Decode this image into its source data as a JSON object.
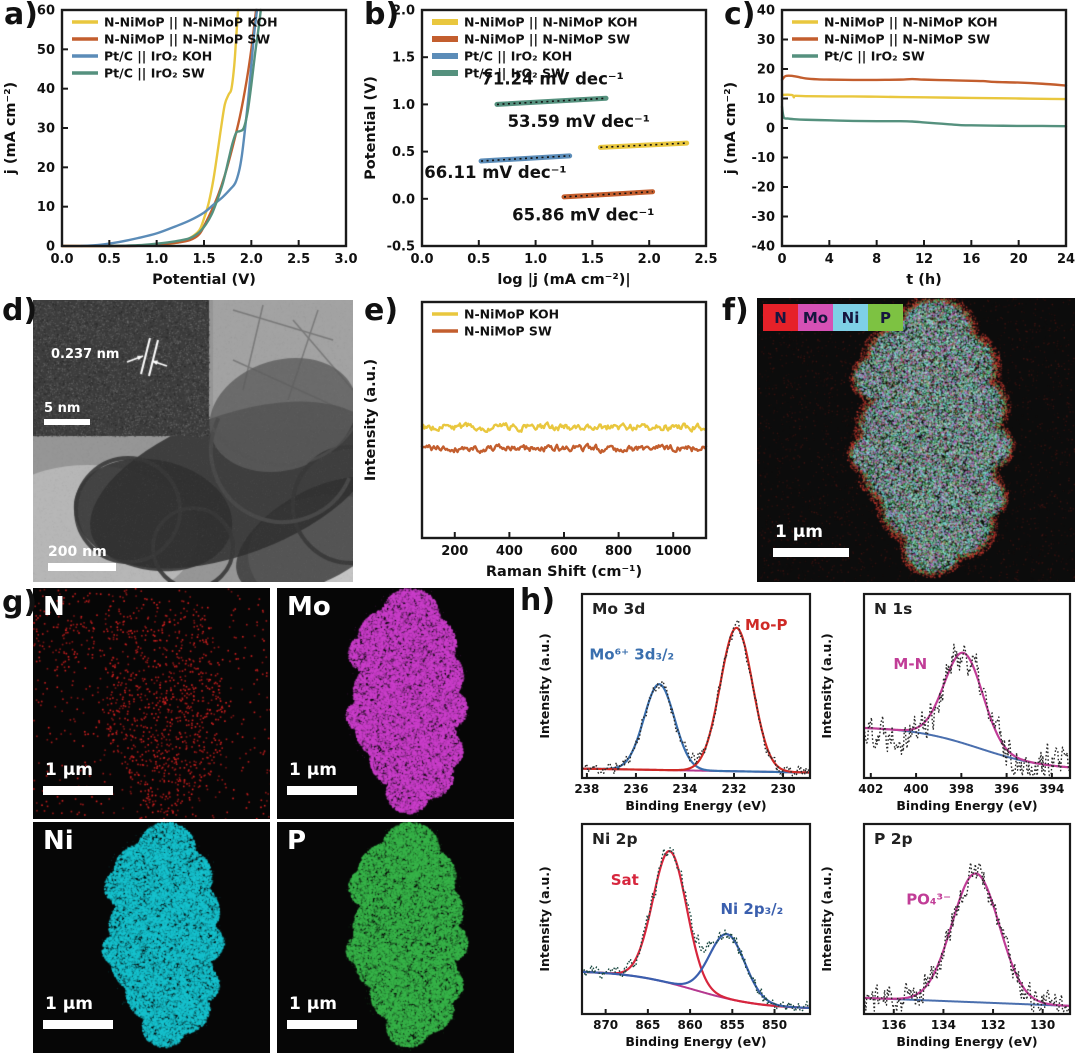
{
  "panels": {
    "a": {
      "letter": "a)"
    },
    "b": {
      "letter": "b)"
    },
    "c": {
      "letter": "c)"
    },
    "d": {
      "letter": "d)",
      "inset_annotation": "0.237 nm",
      "inset_scalebar": "5 nm",
      "scalebar": "200 nm"
    },
    "e": {
      "letter": "e)"
    },
    "f": {
      "letter": "f)",
      "scalebar": "1 μm",
      "legend": [
        {
          "label": "N",
          "color": "#e62129"
        },
        {
          "label": "Mo",
          "color": "#d551b5"
        },
        {
          "label": "Ni",
          "color": "#7ed0e6"
        },
        {
          "label": "P",
          "color": "#7dc242"
        }
      ],
      "map_layers": {
        "green": "#4fae5f",
        "cyan": "#74d4de",
        "magenta": "#c75fd0",
        "light": "#dff0dc",
        "red": "#cf3b30"
      }
    },
    "g": {
      "letter": "g)",
      "maps": [
        {
          "label": "N",
          "color": "#e02222",
          "mode": "sparse",
          "scalebar": "1 μm"
        },
        {
          "label": "Mo",
          "color": "#cb3ecb",
          "mode": "dense",
          "scalebar": "1 μm"
        },
        {
          "label": "Ni",
          "color": "#17c3cf",
          "mode": "dense",
          "scalebar": "1 μm"
        },
        {
          "label": "P",
          "color": "#38b54a",
          "mode": "dense",
          "scalebar": "1 μm"
        }
      ]
    },
    "h": {
      "letter": "h)"
    }
  },
  "chart_data": {
    "a": {
      "type": "line",
      "xlabel": "Potential (V)",
      "ylabel": "j (mA cm⁻²)",
      "xlim": [
        0,
        3.0
      ],
      "ylim": [
        0,
        60
      ],
      "xticks": [
        "0.0",
        "0.5",
        "1.0",
        "1.5",
        "2.0",
        "2.5",
        "3.0"
      ],
      "yticks": [
        "0",
        "10",
        "20",
        "30",
        "40",
        "50",
        "60"
      ],
      "legend": [
        {
          "label": "N-NiMoP || N-NiMoP KOH",
          "color": "#e9c73e"
        },
        {
          "label": "N-NiMoP || N-NiMoP SW",
          "color": "#c35e2e"
        },
        {
          "label": "Pt/C || IrO₂ KOH",
          "color": "#5b8cb8"
        },
        {
          "label": "Pt/C || IrO₂ SW",
          "color": "#55917e"
        }
      ],
      "series": [
        {
          "name": "N-NiMoP || N-NiMoP KOH",
          "color": "#e9c73e",
          "points": [
            [
              0,
              0
            ],
            [
              0.6,
              0
            ],
            [
              0.9,
              0.2
            ],
            [
              1.1,
              0.5
            ],
            [
              1.25,
              1
            ],
            [
              1.35,
              2
            ],
            [
              1.45,
              4
            ],
            [
              1.5,
              7
            ],
            [
              1.55,
              11
            ],
            [
              1.6,
              17
            ],
            [
              1.65,
              25
            ],
            [
              1.68,
              30
            ],
            [
              1.72,
              36
            ],
            [
              1.76,
              38.5
            ],
            [
              1.79,
              40
            ],
            [
              1.82,
              46
            ],
            [
              1.84,
              53
            ],
            [
              1.86,
              60
            ]
          ]
        },
        {
          "name": "N-NiMoP || N-NiMoP SW",
          "color": "#c35e2e",
          "points": [
            [
              0,
              0
            ],
            [
              0.7,
              0
            ],
            [
              1.0,
              0.3
            ],
            [
              1.2,
              0.8
            ],
            [
              1.35,
              1.5
            ],
            [
              1.45,
              3
            ],
            [
              1.52,
              6
            ],
            [
              1.58,
              9
            ],
            [
              1.65,
              13
            ],
            [
              1.72,
              18
            ],
            [
              1.8,
              25
            ],
            [
              1.88,
              33
            ],
            [
              1.95,
              42
            ],
            [
              2.0,
              50
            ],
            [
              2.05,
              60
            ]
          ]
        },
        {
          "name": "Pt/C || IrO₂ KOH",
          "color": "#5b8cb8",
          "points": [
            [
              0.2,
              0
            ],
            [
              0.4,
              0.3
            ],
            [
              0.6,
              1
            ],
            [
              0.8,
              2
            ],
            [
              1.0,
              3.2
            ],
            [
              1.2,
              5
            ],
            [
              1.35,
              6.5
            ],
            [
              1.5,
              8.5
            ],
            [
              1.6,
              10.5
            ],
            [
              1.7,
              12.5
            ],
            [
              1.78,
              14.5
            ],
            [
              1.83,
              16
            ],
            [
              1.87,
              19
            ],
            [
              1.9,
              23
            ],
            [
              1.93,
              29
            ],
            [
              1.97,
              38
            ],
            [
              2.0,
              46
            ],
            [
              2.03,
              54
            ],
            [
              2.06,
              60
            ]
          ]
        },
        {
          "name": "Pt/C || IrO₂ SW",
          "color": "#55917e",
          "points": [
            [
              0.5,
              0
            ],
            [
              0.8,
              0.2
            ],
            [
              1.0,
              0.6
            ],
            [
              1.2,
              1.2
            ],
            [
              1.35,
              2
            ],
            [
              1.45,
              3.5
            ],
            [
              1.52,
              5.5
            ],
            [
              1.58,
              8
            ],
            [
              1.63,
              11
            ],
            [
              1.7,
              16
            ],
            [
              1.76,
              22
            ],
            [
              1.8,
              26
            ],
            [
              1.84,
              28.8
            ],
            [
              1.88,
              29.2
            ],
            [
              1.92,
              30
            ],
            [
              1.96,
              34
            ],
            [
              2.0,
              41
            ],
            [
              2.04,
              49
            ],
            [
              2.08,
              56
            ],
            [
              2.1,
              60
            ]
          ]
        }
      ]
    },
    "b": {
      "type": "line",
      "xlabel": "log |j (mA cm⁻²)|",
      "ylabel": "Potential (V)",
      "xlim": [
        0,
        2.5
      ],
      "ylim": [
        -0.5,
        2.0
      ],
      "xticks": [
        "0.0",
        "0.5",
        "1.0",
        "1.5",
        "2.0",
        "2.5"
      ],
      "yticks": [
        "-0.5",
        "0.0",
        "0.5",
        "1.0",
        "1.5",
        "2.0"
      ],
      "dotted_fit": true,
      "legendSw": 6,
      "legend": [
        {
          "label": "N-NiMoP || N-NiMoP KOH",
          "color": "#e9c73e"
        },
        {
          "label": "N-NiMoP || N-NiMoP SW",
          "color": "#c35e2e"
        },
        {
          "label": "Pt/C || IrO₂ KOH",
          "color": "#5b8cb8"
        },
        {
          "label": "Pt/C || IrO₂ SW",
          "color": "#55917e"
        }
      ],
      "series": [
        {
          "name": "Pt/C || IrO₂ SW",
          "color": "#55917e",
          "w": 5,
          "smooth": false,
          "points": [
            [
              0.66,
              1.0
            ],
            [
              1.62,
              1.065
            ]
          ]
        },
        {
          "name": "N-NiMoP || N-NiMoP KOH",
          "color": "#e9c73e",
          "w": 5,
          "smooth": false,
          "points": [
            [
              1.57,
              0.545
            ],
            [
              2.33,
              0.59
            ]
          ]
        },
        {
          "name": "Pt/C || IrO₂ KOH",
          "color": "#5b8cb8",
          "w": 5,
          "smooth": false,
          "points": [
            [
              0.52,
              0.4
            ],
            [
              1.3,
              0.455
            ]
          ]
        },
        {
          "name": "N-NiMoP || N-NiMoP SW",
          "color": "#c35e2e",
          "w": 5,
          "smooth": false,
          "points": [
            [
              1.25,
              0.02
            ],
            [
              2.03,
              0.075
            ]
          ]
        }
      ],
      "annotations": [
        {
          "text": "71.24 mV dec⁻¹",
          "x": 1.15,
          "y": 1.21,
          "anchor": "middle"
        },
        {
          "text": "53.59 mV dec⁻¹",
          "x": 1.38,
          "y": 0.76,
          "anchor": "middle"
        },
        {
          "text": "66.11 mV dec⁻¹",
          "x": 0.02,
          "y": 0.22,
          "anchor": "start"
        },
        {
          "text": "65.86 mV dec⁻¹",
          "x": 1.42,
          "y": -0.23,
          "anchor": "middle"
        }
      ]
    },
    "c": {
      "type": "line",
      "xlabel": "t (h)",
      "ylabel": "j (mA cm⁻²)",
      "xlim": [
        0,
        24
      ],
      "ylim": [
        -40,
        40
      ],
      "xticks": [
        "0",
        "4",
        "8",
        "12",
        "16",
        "20",
        "24"
      ],
      "yticks": [
        "-40",
        "-30",
        "-20",
        "-10",
        "0",
        "10",
        "20",
        "30",
        "40"
      ],
      "legend": [
        {
          "label": "N-NiMoP || N-NiMoP KOH",
          "color": "#e9c73e"
        },
        {
          "label": "N-NiMoP || N-NiMoP SW",
          "color": "#c35e2e"
        },
        {
          "label": "Pt/C || IrO₂ SW",
          "color": "#55917e"
        }
      ],
      "series": [
        {
          "name": "N-NiMoP || N-NiMoP KOH",
          "color": "#e9c73e",
          "points": [
            [
              0,
              11.2
            ],
            [
              0.5,
              11.3
            ],
            [
              0.9,
              11.1
            ],
            [
              1,
              10.4
            ],
            [
              1.1,
              10.9
            ],
            [
              2,
              10.8
            ],
            [
              4,
              10.7
            ],
            [
              6,
              10.7
            ],
            [
              8,
              10.6
            ],
            [
              10,
              10.5
            ],
            [
              12,
              10.4
            ],
            [
              14,
              10.3
            ],
            [
              16,
              10.2
            ],
            [
              18,
              10.1
            ],
            [
              20,
              10.0
            ],
            [
              22,
              9.9
            ],
            [
              24,
              9.8
            ]
          ]
        },
        {
          "name": "N-NiMoP || N-NiMoP SW",
          "color": "#c35e2e",
          "points": [
            [
              0,
              16.3
            ],
            [
              0.3,
              17.6
            ],
            [
              0.8,
              17.7
            ],
            [
              1.5,
              17.2
            ],
            [
              2,
              16.8
            ],
            [
              3,
              16.5
            ],
            [
              4,
              16.4
            ],
            [
              6,
              16.3
            ],
            [
              8,
              16.3
            ],
            [
              10,
              16.4
            ],
            [
              11,
              16.6
            ],
            [
              12,
              16.4
            ],
            [
              14,
              16.2
            ],
            [
              16,
              16.0
            ],
            [
              17,
              15.9
            ],
            [
              18,
              15.6
            ],
            [
              20,
              15.4
            ],
            [
              22,
              15.0
            ],
            [
              24,
              14.4
            ]
          ]
        },
        {
          "name": "Pt/C || IrO₂ SW",
          "color": "#55917e",
          "points": [
            [
              0,
              7.2
            ],
            [
              0.15,
              3.6
            ],
            [
              0.5,
              3.2
            ],
            [
              1,
              3.0
            ],
            [
              2,
              2.8
            ],
            [
              4,
              2.6
            ],
            [
              6,
              2.4
            ],
            [
              8,
              2.3
            ],
            [
              10,
              2.3
            ],
            [
              11,
              2.2
            ],
            [
              12,
              1.9
            ],
            [
              13,
              1.6
            ],
            [
              14,
              1.3
            ],
            [
              15,
              1.0
            ],
            [
              16,
              0.9
            ],
            [
              18,
              0.8
            ],
            [
              20,
              0.7
            ],
            [
              22,
              0.7
            ],
            [
              24,
              0.6
            ]
          ]
        }
      ]
    },
    "e": {
      "type": "line",
      "xlabel": "Raman Shift (cm⁻¹)",
      "ylabel": "Intensity (a.u.)",
      "xlim": [
        80,
        1120
      ],
      "ylim": [
        0,
        1
      ],
      "xticks": [
        "200",
        "400",
        "600",
        "800",
        "1000"
      ],
      "yticks": [],
      "legend": [
        {
          "label": "N-NiMoP KOH",
          "color": "#e9c73e"
        },
        {
          "label": "N-NiMoP SW",
          "color": "#c35e2e"
        }
      ],
      "series": [
        {
          "name": "N-NiMoP KOH",
          "color": "#e9c73e",
          "flatY": 0.47,
          "noise": 0.012
        },
        {
          "name": "N-NiMoP SW",
          "color": "#c35e2e",
          "flatY": 0.38,
          "noise": 0.012
        }
      ]
    },
    "mo3d": {
      "type": "line",
      "xps": true,
      "title": "Mo 3d",
      "xlabel": "Binding Energy (eV)",
      "ylabel": "Intensity (a.u.)",
      "xlim": [
        238.2,
        228.9
      ],
      "xticks": [
        "238",
        "236",
        "234",
        "232",
        "230"
      ],
      "peaks": [
        {
          "center": 235.05,
          "sigma": 0.62,
          "amp": 0.55,
          "color": "#3a6fae"
        },
        {
          "center": 231.9,
          "sigma": 0.66,
          "amp": 0.92,
          "color": "#cf2a26"
        }
      ],
      "baseline": {
        "type": "flat",
        "left": 0.06,
        "right": 0.035,
        "color": "#b5388f"
      },
      "noise": 0.035,
      "dataColor": "#2b2b2b",
      "seed": 11,
      "labels": [
        {
          "text": "Mo⁶⁺ 3d₃/₂",
          "x": 237.9,
          "y": 0.76,
          "color": "#3a6fae",
          "anchor": "start"
        },
        {
          "text": "Mo-P",
          "x": 231.55,
          "y": 0.95,
          "color": "#cf2a26",
          "anchor": "start"
        }
      ]
    },
    "n1s": {
      "type": "line",
      "xps": true,
      "title": "N 1s",
      "xlabel": "Binding Energy (eV)",
      "ylabel": "Intensity (a.u.)",
      "xlim": [
        402.3,
        393.2
      ],
      "xticks": [
        "402",
        "400",
        "398",
        "396",
        "394"
      ],
      "peaks": [
        {
          "center": 397.9,
          "sigma": 0.85,
          "amp": 0.58,
          "color": "#c13d97",
          "onBaseline": true
        }
      ],
      "baseline": {
        "type": "sigmoid",
        "left": 0.33,
        "right": 0.05,
        "center": 397.2,
        "width": 1.5,
        "color": "#4a6fae"
      },
      "noise": 0.1,
      "dataColor": "#2b2b2b",
      "seed": 22,
      "labels": [
        {
          "text": "M-N",
          "x": 401.0,
          "y": 0.7,
          "color": "#c13d97",
          "anchor": "start"
        }
      ]
    },
    "ni2p": {
      "type": "line",
      "xps": true,
      "title": "Ni 2p",
      "xlabel": "Binding Energy (eV)",
      "ylabel": "Intensity (a.u.)",
      "xlim": [
        872.8,
        845.8
      ],
      "xticks": [
        "870",
        "865",
        "860",
        "855",
        "850"
      ],
      "peaks": [
        {
          "center": 862.4,
          "sigma": 2.0,
          "amp": 0.82,
          "color": "#d7263d"
        },
        {
          "center": 855.6,
          "sigma": 2.1,
          "amp": 0.4,
          "color": "#3a5fae"
        }
      ],
      "baseline": {
        "type": "sigmoid",
        "left": 0.27,
        "right": 0.03,
        "center": 859.5,
        "width": 4.0,
        "color": "#b5388f"
      },
      "noise": 0.035,
      "dataColor": "#1c4a42",
      "seed": 33,
      "labels": [
        {
          "text": "Sat",
          "x": 869.4,
          "y": 0.8,
          "color": "#d7263d",
          "anchor": "start"
        },
        {
          "text": "Ni 2p₃/₂",
          "x": 856.4,
          "y": 0.62,
          "color": "#3a5fae",
          "anchor": "start"
        }
      ]
    },
    "p2p": {
      "type": "line",
      "xps": true,
      "title": "P 2p",
      "xlabel": "Binding Energy (eV)",
      "ylabel": "Intensity (a.u.)",
      "xlim": [
        137.2,
        128.9
      ],
      "xticks": [
        "136",
        "134",
        "132",
        "130"
      ],
      "peaks": [
        {
          "center": 132.7,
          "sigma": 0.95,
          "amp": 0.8,
          "color": "#c13d97"
        }
      ],
      "baseline": {
        "type": "flat",
        "left": 0.1,
        "right": 0.05,
        "color": "#4a6fae"
      },
      "noise": 0.075,
      "dataColor": "#2b2b2b",
      "seed": 44,
      "labels": [
        {
          "text": "PO₄³⁻",
          "x": 135.5,
          "y": 0.68,
          "color": "#c13d97",
          "anchor": "start"
        }
      ]
    }
  }
}
